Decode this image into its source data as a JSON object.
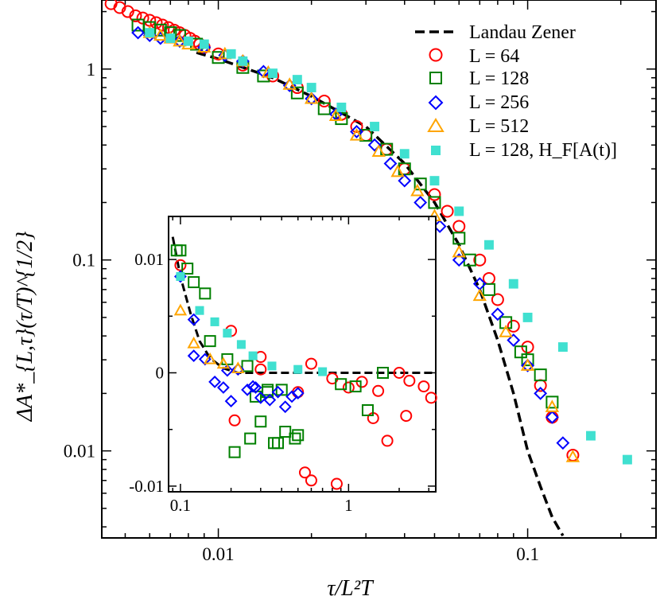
{
  "chart_data": {
    "type": "scatter",
    "xscale": "log",
    "yscale": "log",
    "xlim": [
      0.0042,
      0.26
    ],
    "ylim": [
      0.0035,
      2.3
    ],
    "grid": false,
    "legend_position": "top-right",
    "xlabel": "τ/L²T",
    "ylabel": "ΔA*_{L,τ}(τ/T)^{1/2}",
    "x_ticks": [
      {
        "value": 0.01,
        "label": "0.01"
      },
      {
        "value": 0.1,
        "label": "0.1"
      }
    ],
    "y_ticks": [
      {
        "value": 0.01,
        "label": "0.01"
      },
      {
        "value": 0.1,
        "label": "0.1"
      },
      {
        "value": 1,
        "label": "1"
      }
    ],
    "legend": {
      "lz": "Landau Zener",
      "l64": "L = 64",
      "l128": "L = 128",
      "l256": "L = 256",
      "l512": "L = 512",
      "l128hf": "L = 128, H_F[A(t)]"
    },
    "series": [
      {
        "name": "Landau Zener",
        "style": "dashed-line",
        "color": "#000000",
        "x": [
          0.0085,
          0.01,
          0.015,
          0.02,
          0.03,
          0.04,
          0.05,
          0.06,
          0.07,
          0.08,
          0.09,
          0.1,
          0.11,
          0.12,
          0.13
        ],
        "y": [
          1.22,
          1.13,
          0.9,
          0.72,
          0.5,
          0.32,
          0.2,
          0.12,
          0.07,
          0.038,
          0.02,
          0.01,
          0.0065,
          0.0045,
          0.0036
        ]
      },
      {
        "name": "L = 64",
        "marker": "circle",
        "color": "#ff0000",
        "x": [
          0.0045,
          0.0048,
          0.0051,
          0.0054,
          0.0057,
          0.006,
          0.0063,
          0.0066,
          0.0069,
          0.0072,
          0.0075,
          0.0078,
          0.0081,
          0.0084,
          0.0087,
          0.009,
          0.01,
          0.012,
          0.015,
          0.018,
          0.022,
          0.025,
          0.028,
          0.03,
          0.035,
          0.04,
          0.05,
          0.055,
          0.06,
          0.07,
          0.075,
          0.08,
          0.09,
          0.1,
          0.11,
          0.12,
          0.14
        ],
        "y": [
          2.2,
          2.1,
          2.0,
          1.9,
          1.85,
          1.8,
          1.75,
          1.7,
          1.65,
          1.6,
          1.55,
          1.5,
          1.45,
          1.4,
          1.35,
          1.3,
          1.2,
          1.05,
          0.92,
          0.8,
          0.68,
          0.58,
          0.5,
          0.45,
          0.38,
          0.3,
          0.22,
          0.18,
          0.15,
          0.1,
          0.08,
          0.062,
          0.045,
          0.035,
          0.022,
          0.015,
          0.0095
        ]
      },
      {
        "name": "L = 128",
        "marker": "square",
        "color": "#008000",
        "x": [
          0.0055,
          0.006,
          0.0065,
          0.007,
          0.0075,
          0.0085,
          0.01,
          0.012,
          0.014,
          0.018,
          0.022,
          0.025,
          0.03,
          0.035,
          0.04,
          0.045,
          0.05,
          0.06,
          0.065,
          0.075,
          0.085,
          0.095,
          0.1,
          0.11,
          0.12
        ],
        "y": [
          1.7,
          1.65,
          1.6,
          1.55,
          1.5,
          1.35,
          1.15,
          1.02,
          0.92,
          0.75,
          0.62,
          0.55,
          0.45,
          0.38,
          0.3,
          0.25,
          0.2,
          0.13,
          0.1,
          0.07,
          0.047,
          0.033,
          0.03,
          0.025,
          0.018
        ]
      },
      {
        "name": "L = 256",
        "marker": "diamond",
        "color": "#0000ff",
        "x": [
          0.0055,
          0.006,
          0.0065,
          0.0075,
          0.009,
          0.0105,
          0.012,
          0.014,
          0.017,
          0.02,
          0.024,
          0.028,
          0.032,
          0.036,
          0.04,
          0.045,
          0.052,
          0.06,
          0.07,
          0.08,
          0.09,
          0.1,
          0.11,
          0.12,
          0.13
        ],
        "y": [
          1.55,
          1.5,
          1.45,
          1.4,
          1.3,
          1.18,
          1.1,
          0.97,
          0.82,
          0.7,
          0.58,
          0.47,
          0.4,
          0.32,
          0.26,
          0.2,
          0.15,
          0.1,
          0.075,
          0.052,
          0.038,
          0.028,
          0.02,
          0.015,
          0.011
        ]
      },
      {
        "name": "L = 512",
        "marker": "triangle",
        "color": "#ffa500",
        "x": [
          0.006,
          0.0065,
          0.007,
          0.0075,
          0.008,
          0.009,
          0.0105,
          0.012,
          0.0145,
          0.017,
          0.02,
          0.024,
          0.028,
          0.033,
          0.038,
          0.044,
          0.05,
          0.06,
          0.07,
          0.085,
          0.1,
          0.12,
          0.14
        ],
        "y": [
          1.55,
          1.5,
          1.45,
          1.4,
          1.35,
          1.3,
          1.2,
          1.1,
          0.96,
          0.83,
          0.7,
          0.57,
          0.45,
          0.37,
          0.29,
          0.23,
          0.17,
          0.11,
          0.065,
          0.042,
          0.028,
          0.017,
          0.0093
        ]
      },
      {
        "name": "L = 128, H_F[A(t)]",
        "marker": "filled-square",
        "color": "#40e0d0",
        "x": [
          0.006,
          0.007,
          0.008,
          0.009,
          0.011,
          0.012,
          0.015,
          0.018,
          0.02,
          0.025,
          0.032,
          0.04,
          0.05,
          0.06,
          0.075,
          0.09,
          0.1,
          0.13,
          0.16,
          0.21
        ],
        "y": [
          1.55,
          1.45,
          1.4,
          1.35,
          1.2,
          1.1,
          0.95,
          0.88,
          0.8,
          0.63,
          0.5,
          0.36,
          0.26,
          0.18,
          0.12,
          0.075,
          0.05,
          0.035,
          0.012,
          0.009
        ]
      }
    ],
    "inset": {
      "xscale": "log",
      "xlim": [
        0.085,
        3.3
      ],
      "ylim": [
        -0.0105,
        0.0138
      ],
      "x_ticks": [
        {
          "value": 0.1,
          "label": "0.1"
        },
        {
          "value": 1,
          "label": "1"
        }
      ],
      "y_ticks": [
        {
          "value": -0.01,
          "label": "-0.01"
        },
        {
          "value": 0,
          "label": "0"
        },
        {
          "value": 0.01,
          "label": "0.01"
        }
      ],
      "series": [
        {
          "name": "Landau Zener",
          "style": "dashed-line",
          "color": "#000000",
          "x": [
            0.09,
            0.1,
            0.115,
            0.13,
            0.15,
            0.18,
            0.22,
            0.3,
            0.5,
            1,
            2,
            3.2
          ],
          "y": [
            0.012,
            0.0085,
            0.0052,
            0.0028,
            0.0013,
            0.0004,
            0.0,
            0.0,
            0.0,
            0.0,
            0.0,
            0.0
          ]
        },
        {
          "name": "L = 64",
          "marker": "circle",
          "color": "#ff0000",
          "x": [
            0.1,
            0.2,
            0.3,
            0.5,
            0.8,
            1.2,
            1.5,
            2.3,
            3.1,
            0.3,
            0.6,
            1.0,
            1.4,
            2.0,
            2.8,
            0.21,
            0.6,
            0.55,
            0.85,
            1.7,
            2.2
          ],
          "y": [
            0.0095,
            0.0037,
            0.0003,
            -0.0017,
            -0.0005,
            -0.0008,
            -0.0016,
            -0.0007,
            -0.0022,
            0.0014,
            0.0008,
            -0.0013,
            -0.004,
            0.0,
            -0.0012,
            -0.0042,
            -0.0095,
            -0.0088,
            -0.0098,
            -0.006,
            -0.0038
          ]
        },
        {
          "name": "L = 128",
          "marker": "square",
          "color": "#008000",
          "x": [
            0.095,
            0.11,
            0.15,
            0.19,
            0.25,
            0.28,
            0.33,
            0.4,
            0.5,
            0.9,
            1.1,
            1.3,
            1.6,
            0.1,
            0.12,
            0.14,
            0.33,
            0.3,
            0.36,
            0.42,
            0.48,
            0.38,
            0.26,
            0.21
          ],
          "y": [
            0.0108,
            0.0092,
            0.0028,
            0.0012,
            0.0006,
            -0.0021,
            -0.0017,
            -0.0015,
            -0.0055,
            -0.001,
            -0.0012,
            -0.0033,
            0.0,
            0.0108,
            0.008,
            0.007,
            -0.0015,
            -0.0043,
            -0.0062,
            -0.0052,
            -0.0058,
            -0.0062,
            -0.0058,
            -0.007
          ]
        },
        {
          "name": "L = 256",
          "marker": "diamond",
          "color": "#0000ff",
          "x": [
            0.1,
            0.12,
            0.14,
            0.18,
            0.2,
            0.25,
            0.27,
            0.3,
            0.34,
            0.38,
            0.42,
            0.46,
            0.5,
            0.12,
            0.16,
            0.19,
            0.22,
            0.28
          ],
          "y": [
            0.0085,
            0.0047,
            0.0012,
            -0.0013,
            -0.0025,
            -0.0015,
            -0.0012,
            -0.0022,
            -0.0024,
            -0.0017,
            -0.003,
            -0.0021,
            -0.0018,
            0.0015,
            -0.0008,
            0.0002,
            0.0003,
            -0.0013
          ]
        },
        {
          "name": "L = 512",
          "marker": "triangle",
          "color": "#ffa500",
          "x": [
            0.1,
            0.12,
            0.15,
            0.18,
            0.22
          ],
          "y": [
            0.0055,
            0.0026,
            0.0012,
            0.0008,
            0.0004
          ]
        },
        {
          "name": "L = 128, H_F[A(t)]",
          "marker": "filled-square",
          "color": "#40e0d0",
          "x": [
            0.1,
            0.13,
            0.16,
            0.19,
            0.23,
            0.27,
            0.35,
            0.5,
            0.7
          ],
          "y": [
            0.0085,
            0.0055,
            0.0045,
            0.0035,
            0.0025,
            0.0015,
            0.0006,
            0.0003,
            0.0001
          ]
        }
      ]
    }
  }
}
